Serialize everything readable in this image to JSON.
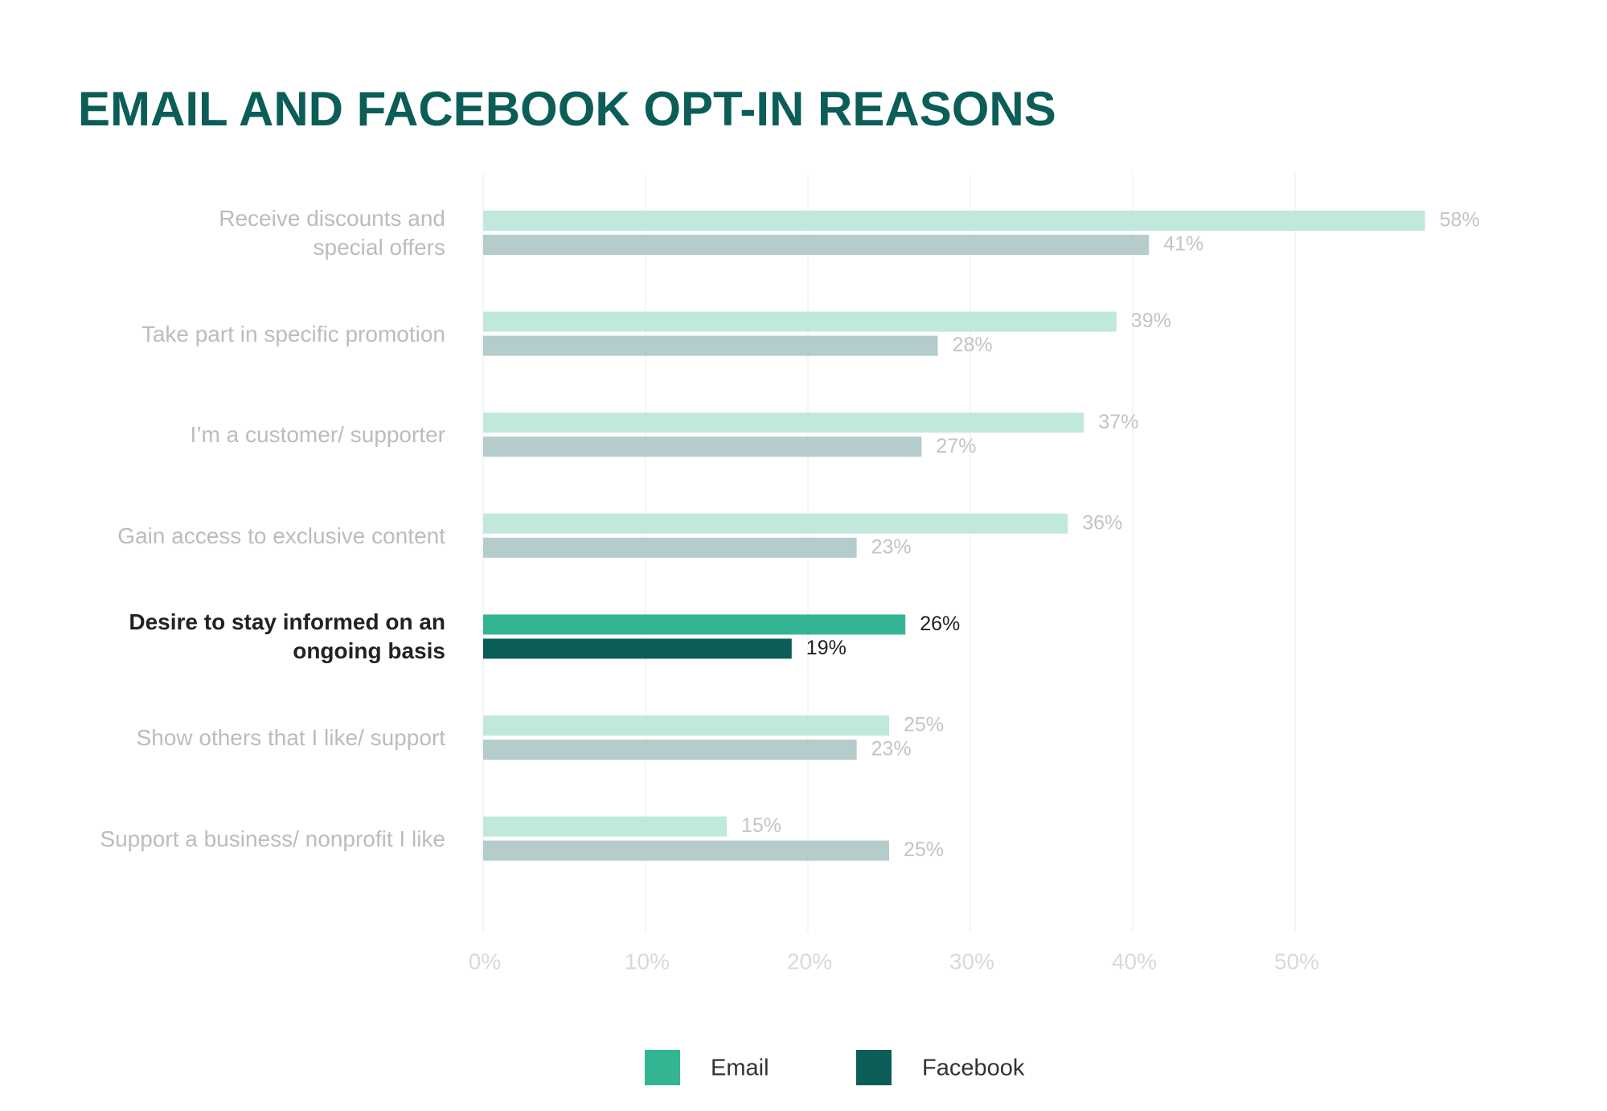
{
  "chart_data": {
    "type": "hbar",
    "title": "EMAIL AND FACEBOOK OPT-IN REASONS",
    "categories": [
      "Receive discounts and\nspecial offers",
      "Take part in specific promotion",
      "I’m a customer/ supporter",
      "Gain access to exclusive content",
      "Desire to stay informed on an\nongoing basis",
      "Show others that I like/ support",
      "Support a business/ nonprofit I like"
    ],
    "highlight": 4,
    "series": [
      {
        "name": "Email",
        "color": "#33b594",
        "faded_color": "#c1e8dd",
        "values": [
          58,
          39,
          37,
          36,
          26,
          25,
          15
        ],
        "value_labels": [
          "58%",
          "39%",
          "37%",
          "36%",
          "26%",
          "25%",
          "15%"
        ]
      },
      {
        "name": "Facebook",
        "color": "#0b5e57",
        "faded_color": "#b4cccb",
        "values": [
          41,
          28,
          27,
          23,
          19,
          23,
          25
        ],
        "value_labels": [
          "41%",
          "28%",
          "27%",
          "23%",
          "19%",
          "23%",
          "25%"
        ]
      }
    ],
    "xlim": [
      0,
      60
    ],
    "xticks": [
      {
        "value": 0,
        "label": "0%"
      },
      {
        "value": 10,
        "label": "10%"
      },
      {
        "value": 20,
        "label": "20%"
      },
      {
        "value": 30,
        "label": "30%"
      },
      {
        "value": 40,
        "label": "40%"
      },
      {
        "value": 50,
        "label": "50%"
      }
    ],
    "grid": true
  }
}
